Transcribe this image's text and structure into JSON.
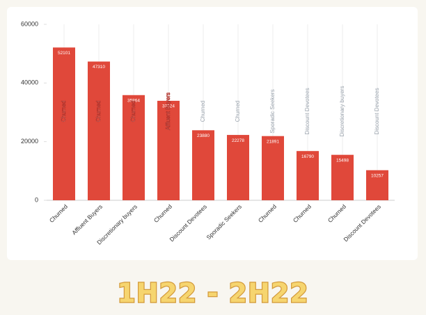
{
  "chart_data": {
    "type": "bar",
    "title": "1H22 - 2H22",
    "categories": [
      "Churned",
      "Affluent Buyers",
      "Discretionary buyers",
      "Churned",
      "Discount Devotees",
      "Sporadic Seekers",
      "Churned",
      "Churned",
      "Churned",
      "Discount Devotees"
    ],
    "values": [
      52101,
      47310,
      35864,
      33924,
      23880,
      22278,
      21891,
      16790,
      15498,
      10257
    ],
    "bar_labels": [
      "Churned",
      "Churned",
      "Churned",
      "Affluent Buyers",
      "Churned",
      "Churned",
      "Sporadic Seekers",
      "Discount Devotees",
      "Discretionary buyers",
      "Discount Devotees"
    ],
    "color": "#e0483a",
    "ylim": [
      0,
      60000
    ],
    "yticks": [
      0,
      20000,
      40000,
      60000
    ],
    "grid": true
  }
}
